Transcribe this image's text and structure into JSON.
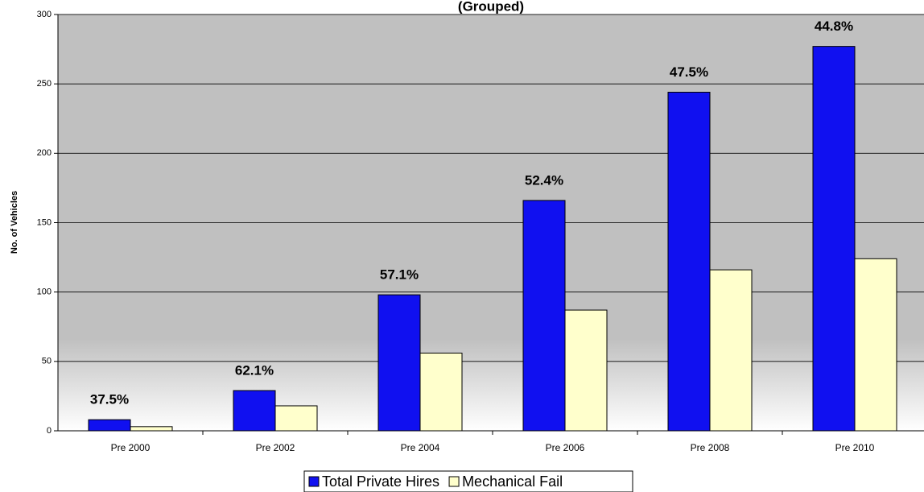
{
  "chart_data": {
    "type": "bar",
    "title": "(Grouped)",
    "y_label": "No. of Vehicles",
    "categories": [
      "Pre 2000",
      "Pre 2002",
      "Pre 2004",
      "Pre 2006",
      "Pre 2008",
      "Pre 2010"
    ],
    "series": [
      {
        "name": "Total Private Hires",
        "color": "#1010f0",
        "values": [
          8,
          29,
          98,
          166,
          244,
          277
        ]
      },
      {
        "name": "Mechanical Fail",
        "color": "#ffffcc",
        "values": [
          3,
          18,
          56,
          87,
          116,
          124
        ]
      }
    ],
    "annotations": [
      "37.5%",
      "62.1%",
      "57.1%",
      "52.4%",
      "47.5%",
      "44.8%"
    ],
    "ylim": [
      0,
      300
    ],
    "yticks": [
      0,
      50,
      100,
      150,
      200,
      250,
      300
    ],
    "grid": true,
    "legend": "bottom"
  }
}
